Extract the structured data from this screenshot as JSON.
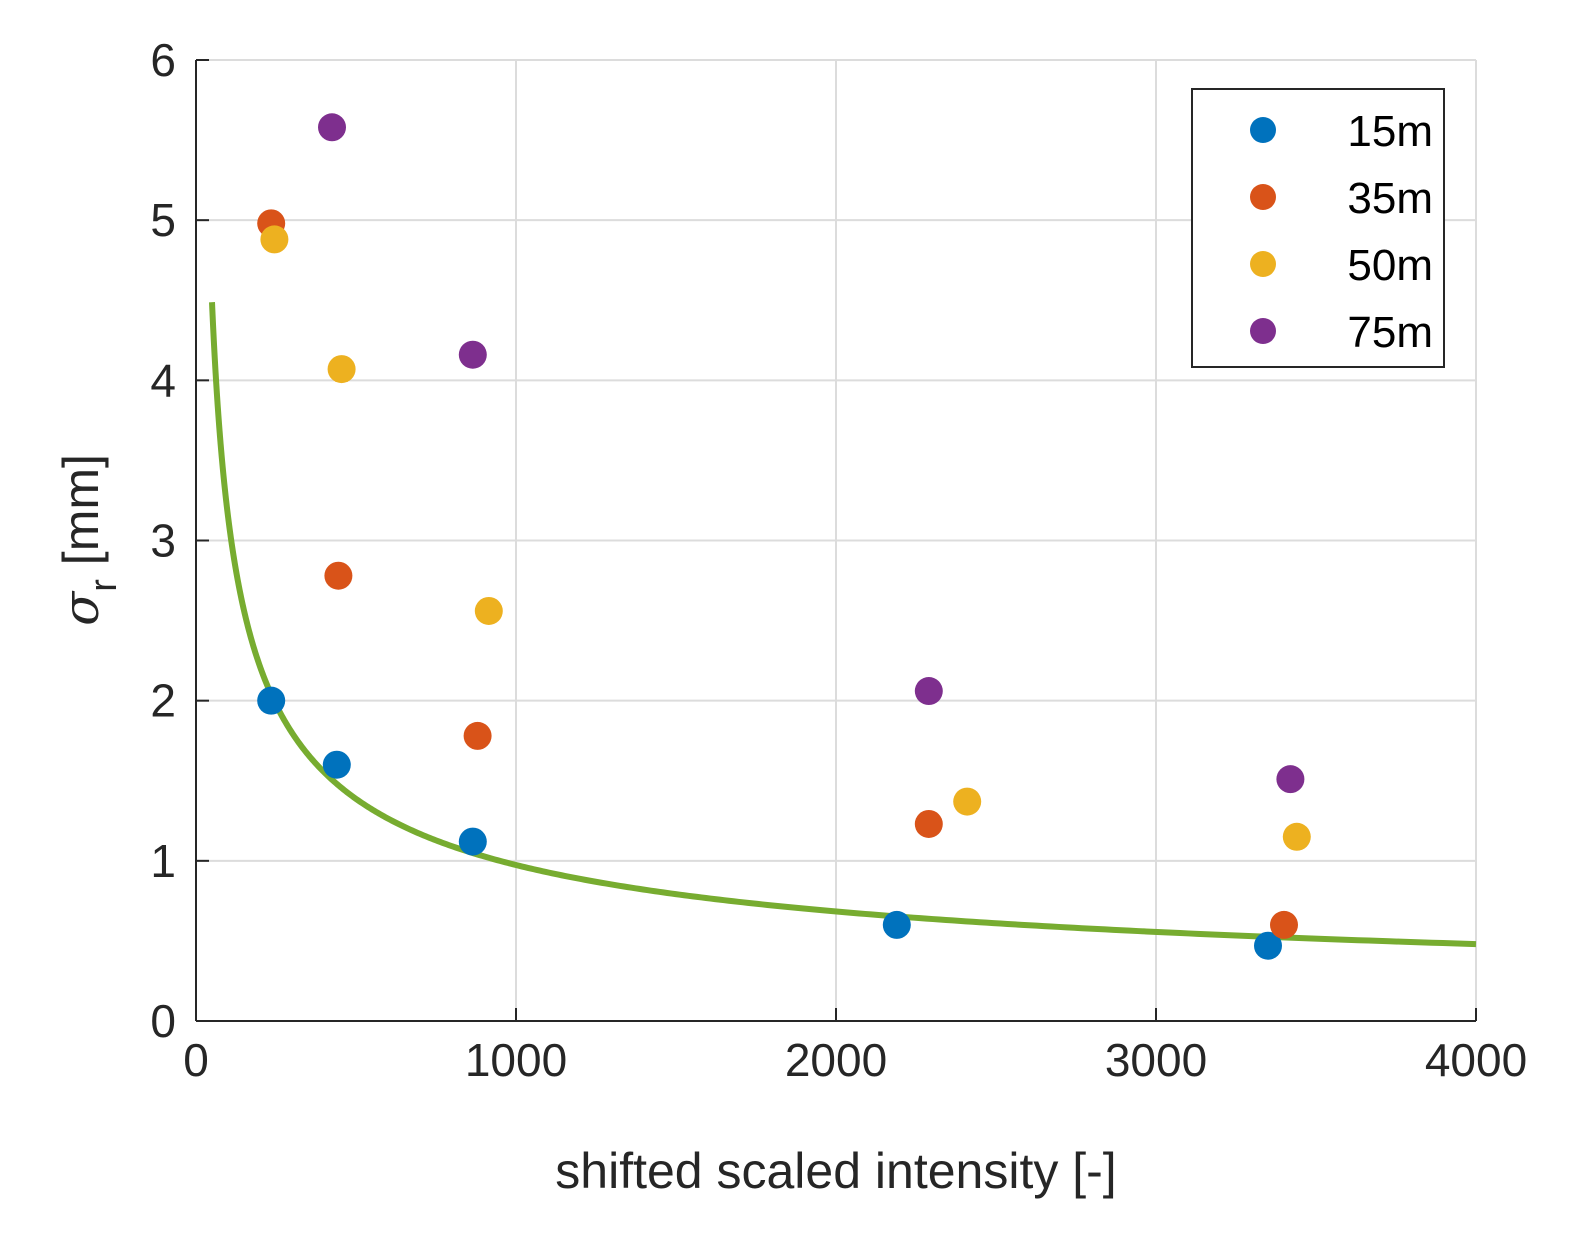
{
  "chart_data": {
    "type": "scatter",
    "title": "",
    "xlabel": "shifted scaled intensity [-]",
    "ylabel": {
      "symbol": "σ",
      "subscript": "r",
      "unit": " [mm]"
    },
    "xlim": [
      0,
      4000
    ],
    "ylim": [
      0,
      6
    ],
    "xticks": [
      "0",
      "1000",
      "2000",
      "3000",
      "4000"
    ],
    "yticks": [
      "0",
      "1",
      "2",
      "3",
      "4",
      "5",
      "6"
    ],
    "grid": true,
    "legend_position": "top-right",
    "series": [
      {
        "name": "15m",
        "color": "#0072BD",
        "points": [
          [
            235,
            2.0
          ],
          [
            440,
            1.6
          ],
          [
            865,
            1.12
          ],
          [
            2190,
            0.6
          ],
          [
            3350,
            0.47
          ]
        ]
      },
      {
        "name": "35m",
        "color": "#D95319",
        "points": [
          [
            235,
            4.98
          ],
          [
            445,
            2.78
          ],
          [
            880,
            1.78
          ],
          [
            2290,
            1.23
          ],
          [
            3400,
            0.6
          ]
        ]
      },
      {
        "name": "50m",
        "color": "#EDB120",
        "points": [
          [
            245,
            4.88
          ],
          [
            455,
            4.07
          ],
          [
            915,
            2.56
          ],
          [
            2410,
            1.37
          ],
          [
            3440,
            1.15
          ]
        ]
      },
      {
        "name": "75m",
        "color": "#7E2F8E",
        "points": [
          [
            425,
            5.58
          ],
          [
            865,
            4.16
          ],
          [
            2290,
            2.06
          ],
          [
            3420,
            1.51
          ]
        ]
      }
    ],
    "fit_curve": {
      "type": "line",
      "color": "#77AC30",
      "formula": "y = 33 / x^0.51",
      "coefficient": 33,
      "exponent": 0.51,
      "x_range": [
        50,
        4000
      ]
    }
  }
}
